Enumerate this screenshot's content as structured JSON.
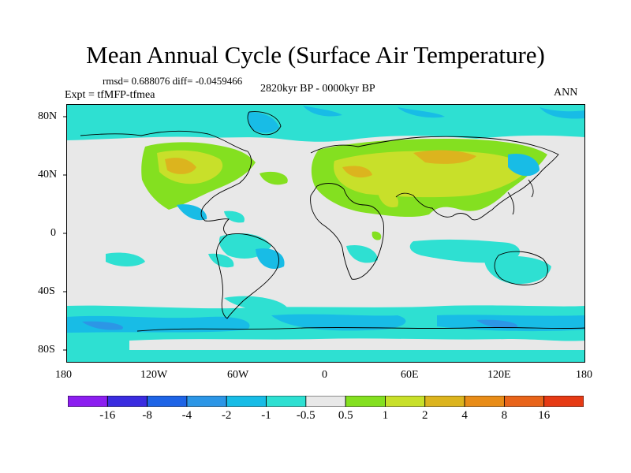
{
  "title": "Mean Annual Cycle (Surface Air Temperature)",
  "stats": "rmsd= 0.688076 diff= -0.0459466",
  "experiment": "Expt = tfMFP-tfmea",
  "period": "2820kyr BP - 0000kyr BP",
  "season": "ANN",
  "y_axis_labels": [
    "80N",
    "40N",
    "0",
    "40S",
    "80S"
  ],
  "x_axis_labels": [
    "180",
    "120W",
    "60W",
    "0",
    "60E",
    "120E",
    "180"
  ],
  "colorbar": {
    "labels": [
      "-16",
      "-8",
      "-4",
      "-2",
      "-1",
      "-0.5",
      "0.5",
      "1",
      "2",
      "4",
      "8",
      "16"
    ],
    "colors": [
      "#8c1ef0",
      "#3a2ce0",
      "#1e64e6",
      "#2c96e6",
      "#18bce6",
      "#2ee0d2",
      "#e8e8e8",
      "#84e020",
      "#c8e02a",
      "#dcb41e",
      "#e88c18",
      "#e8641a",
      "#e63a14"
    ]
  },
  "palette": {
    "ocean_light": "#2ee0d2",
    "ocean_mid": "#18bce6",
    "ocean_deep": "#2c96e6",
    "neutral": "#e8e8e8",
    "land_warm1": "#84e020",
    "land_warm2": "#c8e02a",
    "land_warm3": "#dcb41e"
  }
}
